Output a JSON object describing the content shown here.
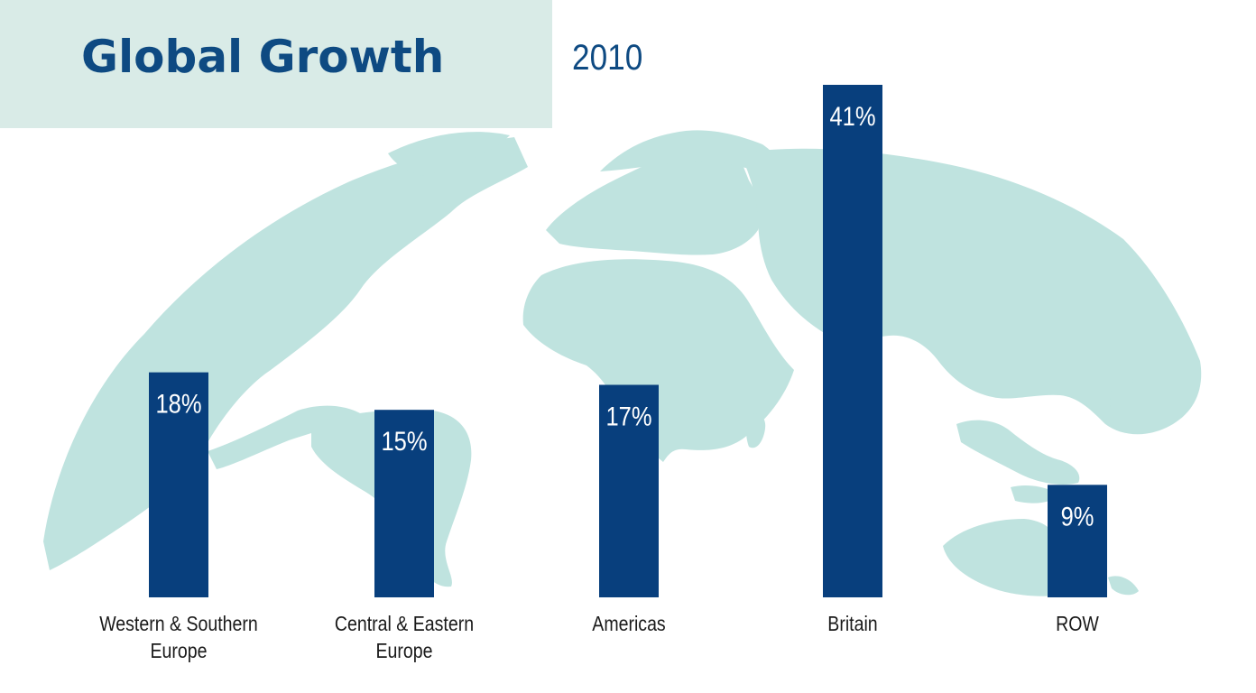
{
  "chart_data": {
    "type": "bar",
    "title": "Global Growth",
    "subtitle": "2010",
    "categories": [
      [
        "Western & Southern",
        "Europe"
      ],
      [
        "Central & Eastern",
        "Europe"
      ],
      [
        "Americas"
      ],
      [
        "Britain"
      ],
      [
        "ROW"
      ]
    ],
    "values": [
      18,
      15,
      17,
      41,
      9
    ],
    "value_labels": [
      "18%",
      "15%",
      "17%",
      "41%",
      "9%"
    ],
    "unit": "%",
    "ylim": [
      0,
      41
    ],
    "grid": false,
    "legend": "none"
  },
  "colors": {
    "bar": "#083f7d",
    "title": "#0e4a82",
    "title_panel": "#d9ebe7",
    "map": "#bfe3df",
    "label_text": "#1a1a1a",
    "value_text": "#ffffff"
  },
  "decoration": {
    "background": "world-map-globe"
  }
}
